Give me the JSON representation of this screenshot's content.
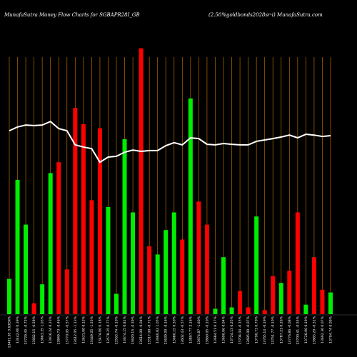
{
  "chart_data": {
    "type": "bar",
    "title": "MunafaSutra  Money Flow  Charts for SGBAPR28I_GB",
    "subtitle": "(2.50%goldbonds2028sr-i) MunafaSutra.com",
    "categories": [
      "13491.95 0.63EN%",
      "13442.00 0.39%",
      "13729.45 -0.72%",
      "13662.15 -0.58%",
      "13863.35 1.03%",
      "13916.24 0.23%",
      "13849.73 -0.46%",
      "13770.05 -0.57%",
      "13612.05 -1.13%",
      "13631.00 0.13%",
      "13449.05 -1.33%",
      "13474.00 0.18%",
      "13578.25 0.77%",
      "13563.74 -0.10%",
      "13674.15 0.81%",
      "13620.15 -0.39%",
      "13614.00 -0.04%",
      "13517.00 -0.71%",
      "13660.82 1.05%",
      "13639.00 -0.16%",
      "13680.15 0.30%",
      "13602.43 -0.57%",
      "13897.77 2.16%",
      "13674.87 -1.60%",
      "13660.05 -0.10%",
      "13684.51 0.17%",
      "13690.06 0.04%",
      "13724.13 0.25%",
      "13704.04 -0.15%",
      "13695.00 -0.07%",
      "13790.73 0.70%",
      "13765.14 -0.19%",
      "13751.77 -0.10%",
      "13787.21 0.26%",
      "13776.86 -0.08%",
      "13700.41 -0.55%",
      "13726.00 0.19%",
      "13683.20 -0.31%",
      "13692.36 0.07%",
      "13704.74 0.09%"
    ],
    "series": [
      {
        "values": [
          13,
          49.5,
          33,
          4,
          11,
          52,
          56,
          16.5,
          76,
          70,
          42,
          68.5,
          39.5,
          7.5,
          64.5,
          37.5,
          98,
          25,
          22,
          31,
          37.5,
          27.5,
          79.5,
          41.5,
          33,
          2,
          21,
          2.5,
          8.5,
          2.5,
          36,
          1.5,
          14,
          11.5,
          16,
          37.5,
          3.5,
          21,
          9,
          8
        ],
        "colors": [
          "#00ee00",
          "#00ee00",
          "#00ee00",
          "#ff0000",
          "#00ee00",
          "#00ee00",
          "#ff0000",
          "#ff0000",
          "#ff0000",
          "#ff0000",
          "#ff0000",
          "#ff0000",
          "#00ee00",
          "#00ee00",
          "#00ee00",
          "#00ee00",
          "#ff0000",
          "#ff0000",
          "#00ee00",
          "#00ee00",
          "#00ee00",
          "#ff0000",
          "#00ee00",
          "#ff0000",
          "#ff0000",
          "#00ee00",
          "#00ee00",
          "#00ee00",
          "#ff0000",
          "#ff0000",
          "#00ee00",
          "#ff0000",
          "#ff0000",
          "#00ee00",
          "#ff0000",
          "#ff0000",
          "#00ee00",
          "#ff0000",
          "#ff0000",
          "#00ee00"
        ]
      },
      {
        "type": "line",
        "color": "#ffffff",
        "values": [
          67.6,
          69,
          69.7,
          69.5,
          69.7,
          71,
          68.4,
          67.6,
          62.4,
          61.6,
          61,
          56,
          57.9,
          58.2,
          59.7,
          60.5,
          60,
          60.3,
          60.3,
          62.1,
          63.2,
          62.4,
          65,
          64.7,
          62.6,
          62.4,
          62.9,
          62.6,
          62.4,
          62.4,
          63.7,
          64.2,
          64.7,
          65.3,
          66,
          65,
          66.3,
          66,
          65.5,
          65.8
        ]
      }
    ],
    "ylim": [
      0,
      100
    ],
    "grid_color": "#b86a00"
  }
}
